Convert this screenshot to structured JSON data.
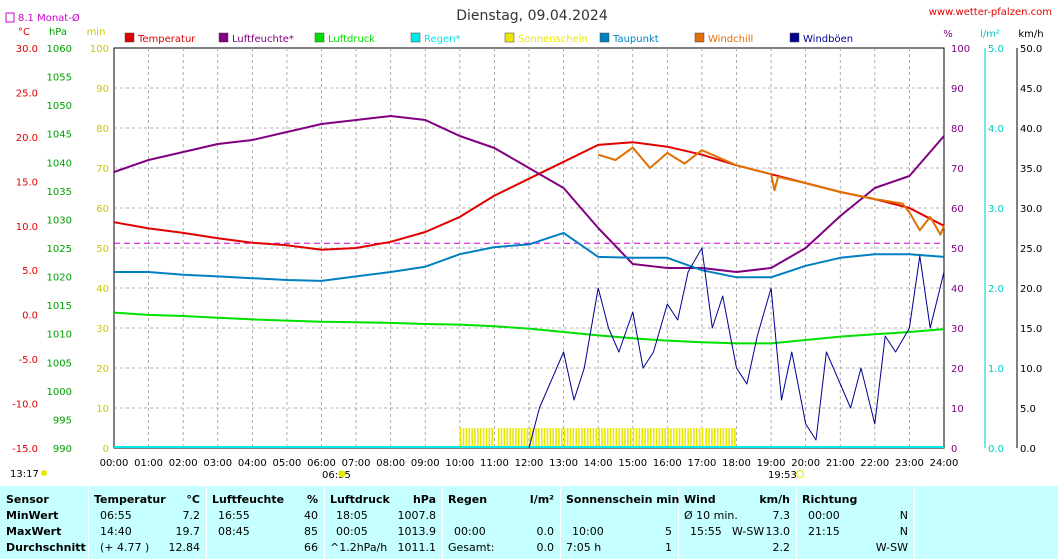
{
  "header": {
    "title": "Dienstag, 09.04.2024",
    "site": "www.wetter-pfalzen.com",
    "rain_month": "8.1 Monat-Ø"
  },
  "units": {
    "temp": "°C",
    "pressure": "hPa",
    "sun": "min",
    "humidity": "%",
    "rain": "l/m²",
    "wind": "km/h"
  },
  "legend": [
    {
      "label": "Temperatur",
      "color": "#e00000"
    },
    {
      "label": "Luftfeuchte*",
      "color": "#800080"
    },
    {
      "label": "Luftdruck",
      "color": "#00e000"
    },
    {
      "label": "Regen*",
      "color": "#00e8e8"
    },
    {
      "label": "Sonnenschein",
      "color": "#e8e800"
    },
    {
      "label": "Taupunkt",
      "color": "#0080c0"
    },
    {
      "label": "Windchill",
      "color": "#e07000"
    },
    {
      "label": "Windböen",
      "color": "#000090"
    }
  ],
  "axes": {
    "temp_ticks": [
      "30.0",
      "25.0",
      "20.0",
      "15.0",
      "10.0",
      "5.0",
      "0.0",
      "-5.0",
      "-10.0",
      "-15.0"
    ],
    "pressure_ticks": [
      "1060",
      "1055",
      "1050",
      "1045",
      "1040",
      "1035",
      "1030",
      "1025",
      "1020",
      "1015",
      "1010",
      "1005",
      "1000",
      "995",
      "990"
    ],
    "sun_ticks": [
      "100",
      "90",
      "80",
      "70",
      "60",
      "50",
      "40",
      "30",
      "20",
      "10",
      "0"
    ],
    "humidity_ticks": [
      "100",
      "90",
      "80",
      "70",
      "60",
      "50",
      "40",
      "30",
      "20",
      "10",
      "0"
    ],
    "rain_ticks": [
      "5.0",
      "4.0",
      "3.0",
      "2.0",
      "1.0",
      "0.0"
    ],
    "wind_ticks": [
      "50.0",
      "45.0",
      "40.0",
      "35.0",
      "30.0",
      "25.0",
      "20.0",
      "15.0",
      "10.0",
      "5.0",
      "0.0"
    ],
    "time_ticks": [
      "00:00",
      "01:00",
      "02:00",
      "03:00",
      "04:00",
      "05:00",
      "06:00",
      "07:00",
      "08:00",
      "09:00",
      "10:00",
      "11:00",
      "12:00",
      "13:00",
      "14:00",
      "15:00",
      "16:00",
      "17:00",
      "18:00",
      "19:00",
      "20:00",
      "21:00",
      "22:00",
      "23:00",
      "24:00"
    ]
  },
  "markers": {
    "sunrise": "06:35",
    "sunset": "19:53",
    "timestamp": "13:17"
  },
  "chart_data": {
    "type": "line",
    "title": "Dienstag, 09.04.2024",
    "x_unit": "hours",
    "x_range": [
      0,
      24
    ],
    "grid": true,
    "series": [
      {
        "name": "Temperatur",
        "axis": "temp",
        "color": "#e00000",
        "x": [
          0,
          1,
          2,
          3,
          4,
          5,
          6,
          7,
          8,
          9,
          10,
          11,
          12,
          13,
          14,
          15,
          16,
          17,
          18,
          19,
          20,
          21,
          22,
          23,
          24
        ],
        "y": [
          10.4,
          9.7,
          9.2,
          8.6,
          8.1,
          7.8,
          7.3,
          7.5,
          8.2,
          9.3,
          11.0,
          13.4,
          15.3,
          17.2,
          19.1,
          19.4,
          18.9,
          18.0,
          16.8,
          15.8,
          14.8,
          13.8,
          13.0,
          12.0,
          10.0
        ]
      },
      {
        "name": "Luftfeuchte*",
        "axis": "humidity",
        "color": "#800080",
        "x": [
          0,
          1,
          2,
          3,
          4,
          5,
          6,
          7,
          8,
          9,
          10,
          11,
          12,
          13,
          14,
          15,
          16,
          17,
          18,
          19,
          20,
          21,
          22,
          23,
          24
        ],
        "y": [
          69,
          72,
          74,
          76,
          77,
          79,
          81,
          82,
          83,
          82,
          78,
          75,
          70,
          65,
          55,
          46,
          45,
          45,
          44,
          45,
          50,
          58,
          65,
          68,
          78
        ]
      },
      {
        "name": "Luftdruck",
        "axis": "pressure",
        "color": "#00e000",
        "x": [
          0,
          1,
          2,
          3,
          4,
          5,
          6,
          7,
          8,
          9,
          10,
          11,
          12,
          13,
          14,
          15,
          16,
          17,
          18,
          19,
          20,
          21,
          22,
          23,
          24
        ],
        "y": [
          1013.7,
          1013.3,
          1013.1,
          1012.8,
          1012.5,
          1012.3,
          1012.1,
          1012.0,
          1011.9,
          1011.7,
          1011.6,
          1011.3,
          1010.9,
          1010.3,
          1009.7,
          1009.2,
          1008.8,
          1008.5,
          1008.3,
          1008.3,
          1008.9,
          1009.5,
          1009.9,
          1010.3,
          1010.8
        ]
      },
      {
        "name": "Taupunkt",
        "axis": "temp",
        "color": "#0080c0",
        "x": [
          0,
          1,
          2,
          3,
          4,
          5,
          6,
          7,
          8,
          9,
          10,
          11,
          12,
          13,
          14,
          15,
          16,
          17,
          18,
          19,
          20,
          21,
          22,
          23,
          24
        ],
        "y": [
          4.8,
          4.8,
          4.5,
          4.3,
          4.1,
          3.9,
          3.8,
          4.3,
          4.8,
          5.4,
          6.8,
          7.6,
          7.9,
          9.2,
          6.5,
          6.4,
          6.4,
          5.0,
          4.2,
          4.2,
          5.5,
          6.4,
          6.8,
          6.8,
          6.5
        ]
      },
      {
        "name": "Windchill",
        "axis": "temp",
        "color": "#e07000",
        "x": [
          14,
          14.5,
          15,
          15.5,
          16,
          16.5,
          17,
          18,
          19,
          19.1,
          19.2,
          20,
          21,
          22,
          22.8,
          23,
          23.3,
          23.6,
          23.9,
          24
        ],
        "y": [
          18.0,
          17.4,
          18.8,
          16.5,
          18.2,
          17.0,
          18.5,
          16.8,
          15.8,
          14.0,
          15.5,
          14.8,
          13.8,
          13.0,
          12.5,
          11.5,
          9.5,
          11.0,
          9.0,
          10.0
        ]
      },
      {
        "name": "Windböen",
        "axis": "wind",
        "color": "#000090",
        "x": [
          12,
          12.3,
          12.6,
          13,
          13.3,
          13.6,
          14,
          14.3,
          14.6,
          15,
          15.3,
          15.6,
          16,
          16.3,
          16.6,
          17,
          17.3,
          17.6,
          18,
          18.3,
          18.6,
          19,
          19.3,
          19.6,
          20,
          20.3,
          20.6,
          21,
          21.3,
          21.6,
          22,
          22.3,
          22.6,
          23,
          23.3,
          23.6,
          24
        ],
        "y": [
          0,
          5,
          8,
          12,
          6,
          10,
          20,
          15,
          12,
          17,
          10,
          12,
          18,
          16,
          22,
          25,
          15,
          19,
          10,
          8,
          14,
          20,
          6,
          12,
          3,
          1,
          12,
          8,
          5,
          10,
          3,
          14,
          12,
          15,
          24,
          15,
          22
        ]
      }
    ],
    "sunshine_bars": {
      "name": "Sonnenschein",
      "color": "#e8e800",
      "intervals": [
        [
          10.0,
          10.95
        ],
        [
          11.1,
          17.0
        ],
        [
          17.1,
          18.0
        ]
      ],
      "height_min": 5
    },
    "rain_series": {
      "name": "Regen*",
      "axis": "rain",
      "color": "#00e8e8",
      "value": 0.0
    },
    "month_avg_rain": {
      "value": 8.1,
      "axis_value": 25.6
    }
  },
  "table": {
    "rows": [
      "Sensor",
      "MinWert",
      "MaxWert",
      "Durchschnitt"
    ],
    "temperatur": {
      "hdr": "Temperatur",
      "unit": "°C",
      "min_t": "06:55",
      "min_v": "7.2",
      "max_t": "14:40",
      "max_v": "19.7",
      "avg_t": "(+ 4.77 )",
      "avg_v": "12.84"
    },
    "luftfeuchte": {
      "hdr": "Luftfeuchte",
      "unit": "%",
      "min_t": "16:55",
      "min_v": "40",
      "max_t": "08:45",
      "max_v": "85",
      "avg_t": "",
      "avg_v": "66"
    },
    "luftdruck": {
      "hdr": "Luftdruck",
      "unit": "hPa",
      "min_t": "18:05",
      "min_v": "1007.8",
      "max_t": "00:05",
      "max_v": "1013.9",
      "avg_t": "^1.2hPa/h",
      "avg_v": "1011.1"
    },
    "regen": {
      "hdr": "Regen",
      "unit": "l/m²",
      "min_t": "",
      "min_v": "",
      "max_t": "00:00",
      "max_v": "0.0",
      "avg_t": "Gesamt:",
      "avg_v": "0.0"
    },
    "sonne": {
      "hdr": "Sonnenschein min",
      "unit": "",
      "min_t": "",
      "min_v": "",
      "max_t": "10:00",
      "max_v": "5",
      "avg_t": "7:05 h",
      "avg_v": "1"
    },
    "wind": {
      "hdr": "Wind",
      "unit": "km/h",
      "min_t": "Ø 10 min.",
      "min_v": "7.3",
      "max_t": "15:55",
      "max_d": "W-SW",
      "max_v": "13.0",
      "avg_t": "",
      "avg_v": "2.2"
    },
    "richtung": {
      "hdr": "Richtung",
      "unit": "",
      "min_t": "00:00",
      "min_v": "N",
      "max_t": "21:15",
      "max_v": "N",
      "avg_t": "",
      "avg_v": "W-SW"
    }
  }
}
